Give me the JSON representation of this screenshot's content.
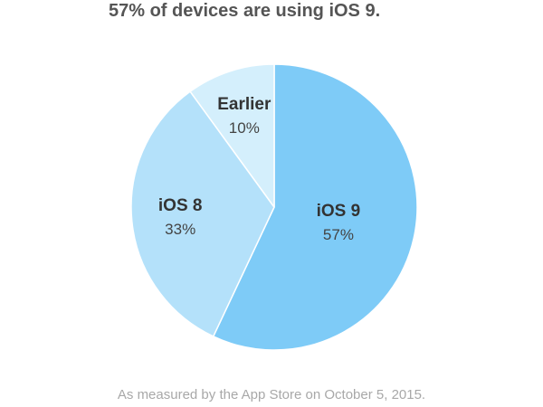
{
  "headline": "57% of devices are using iOS 9.",
  "footnote": "As measured by the App Store on October 5, 2015.",
  "chart_data": {
    "type": "pie",
    "title": "",
    "categories": [
      "iOS 9",
      "iOS 8",
      "Earlier"
    ],
    "values": [
      57,
      33,
      10
    ],
    "labels": [
      "57%",
      "33%",
      "10%"
    ],
    "colors": [
      "#7ecbf7",
      "#b4e1fa",
      "#d4effc"
    ],
    "border_color": "#ffffff",
    "legend": "none"
  }
}
